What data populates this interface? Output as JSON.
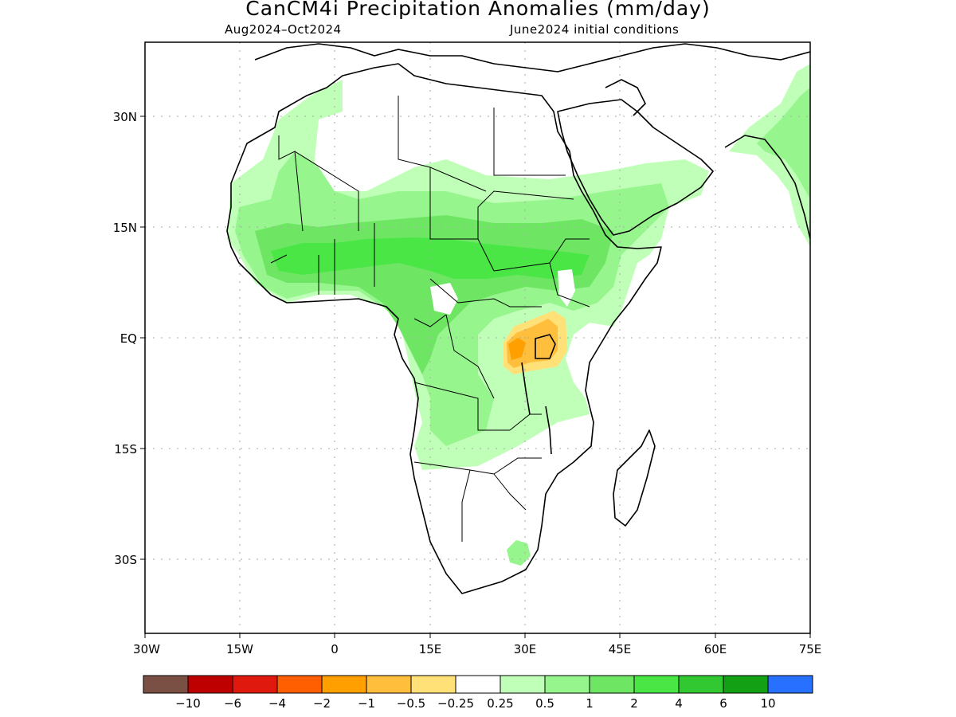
{
  "title": "CanCM4i Precipitation Anomalies (mm/day)",
  "period": "Aug2024–Oct2024",
  "init": "June2024 initial conditions",
  "lat_labels": [
    "30N",
    "15N",
    "EQ",
    "15S",
    "30S"
  ],
  "lon_labels": [
    "30W",
    "15W",
    "0",
    "15E",
    "30E",
    "45E",
    "60E",
    "75E"
  ],
  "colorbar": {
    "colors": [
      "#7a5045",
      "#be0000",
      "#e0190f",
      "#ff5f00",
      "#ffa000",
      "#ffbe3c",
      "#ffe178",
      "#ffffff",
      "#c0ffb8",
      "#96f58c",
      "#6ee664",
      "#4ae646",
      "#32c832",
      "#14a014",
      "#2870ff"
    ],
    "labels": [
      "−10",
      "−6",
      "−4",
      "−2",
      "−1",
      "−0.5",
      "−0.25",
      "0.25",
      "0.5",
      "1",
      "2",
      "4",
      "6",
      "10"
    ]
  },
  "legend_colors": {
    "light_green": "#c0ffb8",
    "green": "#96f58c",
    "mid_green": "#6ee664",
    "bright_green": "#4ae646",
    "yellow": "#ffe178",
    "orange_light": "#ffbe3c",
    "orange": "#ffa000"
  }
}
